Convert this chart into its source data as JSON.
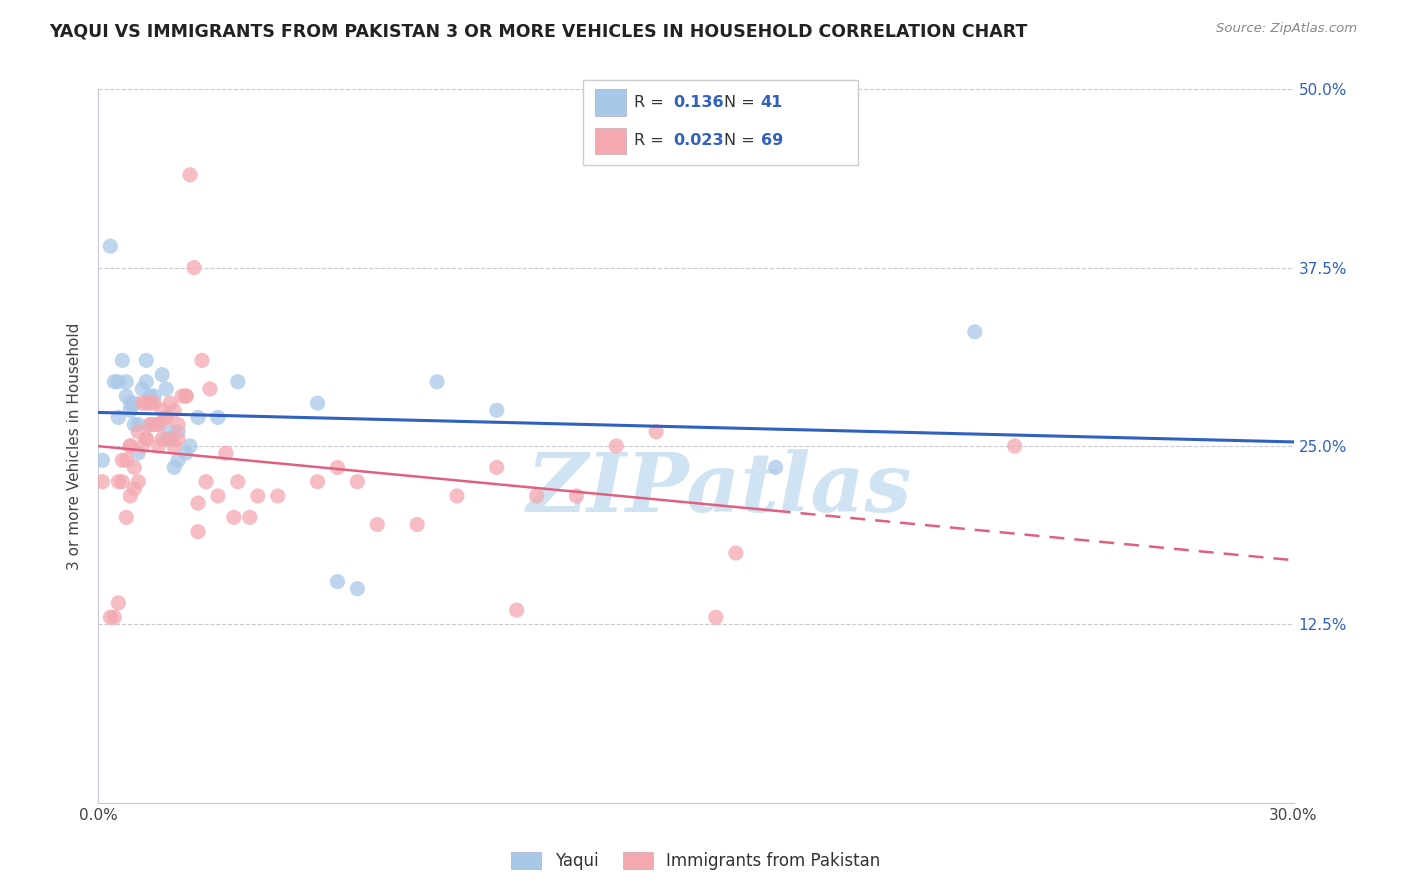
{
  "title": "YAQUI VS IMMIGRANTS FROM PAKISTAN 3 OR MORE VEHICLES IN HOUSEHOLD CORRELATION CHART",
  "source": "Source: ZipAtlas.com",
  "ylabel": "3 or more Vehicles in Household",
  "xmin": 0.0,
  "xmax": 0.3,
  "ymin": 0.0,
  "ymax": 0.5,
  "x_ticks": [
    0.0,
    0.05,
    0.1,
    0.15,
    0.2,
    0.25,
    0.3
  ],
  "y_ticks": [
    0.0,
    0.125,
    0.25,
    0.375,
    0.5
  ],
  "y_tick_labels_right": [
    "",
    "12.5%",
    "25.0%",
    "37.5%",
    "50.0%"
  ],
  "legend_blue_r": "0.136",
  "legend_blue_n": "41",
  "legend_pink_r": "0.023",
  "legend_pink_n": "69",
  "blue_color": "#a8c8e8",
  "pink_color": "#f4a8b0",
  "blue_line_color": "#3060c0",
  "pink_line_color": "#e06080",
  "grid_color": "#c8c8d8",
  "watermark_color": "#c8dff0",
  "legend_label_blue": "Yaqui",
  "legend_label_pink": "Immigrants from Pakistan",
  "blue_scatter_x": [
    0.001,
    0.003,
    0.004,
    0.005,
    0.005,
    0.006,
    0.007,
    0.007,
    0.008,
    0.008,
    0.009,
    0.009,
    0.01,
    0.01,
    0.011,
    0.012,
    0.012,
    0.013,
    0.013,
    0.014,
    0.015,
    0.016,
    0.017,
    0.017,
    0.018,
    0.018,
    0.019,
    0.02,
    0.02,
    0.022,
    0.023,
    0.025,
    0.03,
    0.035,
    0.055,
    0.06,
    0.065,
    0.085,
    0.1,
    0.17,
    0.22
  ],
  "blue_scatter_y": [
    0.24,
    0.39,
    0.295,
    0.27,
    0.295,
    0.31,
    0.285,
    0.295,
    0.28,
    0.275,
    0.265,
    0.28,
    0.265,
    0.245,
    0.29,
    0.31,
    0.295,
    0.285,
    0.265,
    0.285,
    0.265,
    0.3,
    0.255,
    0.29,
    0.255,
    0.26,
    0.235,
    0.26,
    0.24,
    0.245,
    0.25,
    0.27,
    0.27,
    0.295,
    0.28,
    0.155,
    0.15,
    0.295,
    0.275,
    0.235,
    0.33
  ],
  "pink_scatter_x": [
    0.001,
    0.003,
    0.004,
    0.005,
    0.005,
    0.006,
    0.006,
    0.007,
    0.007,
    0.008,
    0.008,
    0.008,
    0.009,
    0.009,
    0.01,
    0.01,
    0.011,
    0.011,
    0.012,
    0.012,
    0.012,
    0.013,
    0.013,
    0.014,
    0.014,
    0.015,
    0.015,
    0.016,
    0.016,
    0.017,
    0.017,
    0.018,
    0.018,
    0.019,
    0.019,
    0.02,
    0.02,
    0.021,
    0.022,
    0.022,
    0.023,
    0.024,
    0.025,
    0.025,
    0.026,
    0.027,
    0.028,
    0.03,
    0.032,
    0.034,
    0.035,
    0.038,
    0.04,
    0.045,
    0.055,
    0.06,
    0.065,
    0.07,
    0.08,
    0.09,
    0.1,
    0.105,
    0.11,
    0.12,
    0.13,
    0.14,
    0.155,
    0.16,
    0.23
  ],
  "pink_scatter_y": [
    0.225,
    0.13,
    0.13,
    0.225,
    0.14,
    0.24,
    0.225,
    0.24,
    0.2,
    0.25,
    0.25,
    0.215,
    0.235,
    0.22,
    0.26,
    0.225,
    0.28,
    0.25,
    0.255,
    0.255,
    0.28,
    0.28,
    0.265,
    0.265,
    0.28,
    0.25,
    0.265,
    0.275,
    0.255,
    0.27,
    0.27,
    0.28,
    0.255,
    0.275,
    0.25,
    0.265,
    0.255,
    0.285,
    0.285,
    0.285,
    0.44,
    0.375,
    0.21,
    0.19,
    0.31,
    0.225,
    0.29,
    0.215,
    0.245,
    0.2,
    0.225,
    0.2,
    0.215,
    0.215,
    0.225,
    0.235,
    0.225,
    0.195,
    0.195,
    0.215,
    0.235,
    0.135,
    0.215,
    0.215,
    0.25,
    0.26,
    0.13,
    0.175,
    0.25
  ]
}
